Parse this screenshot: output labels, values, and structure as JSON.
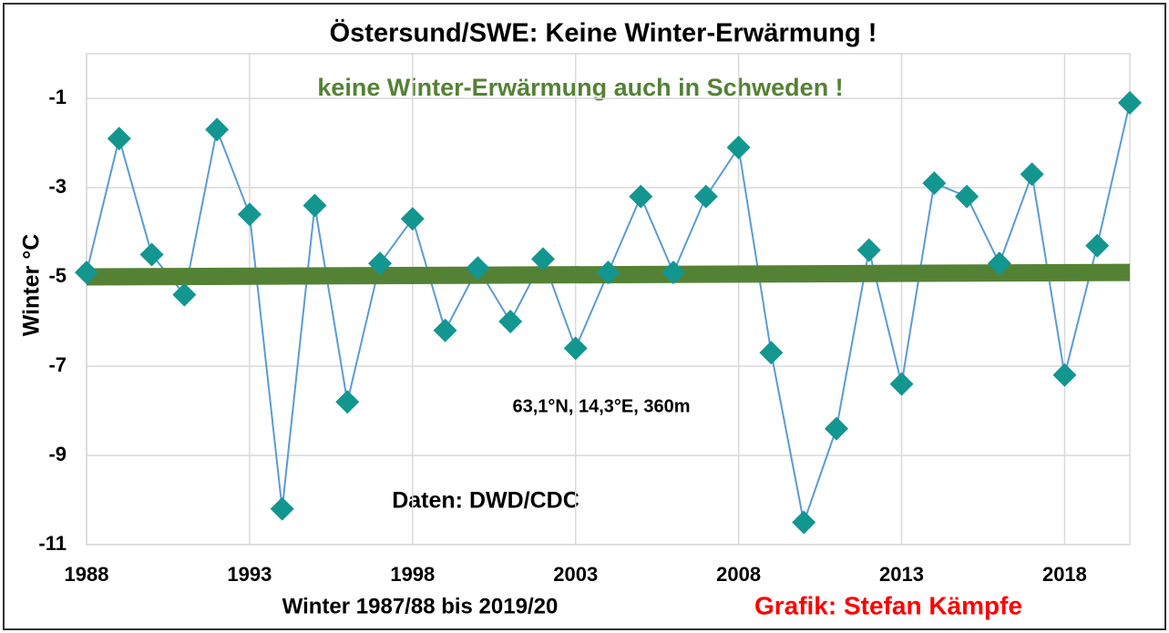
{
  "chart_data": {
    "type": "line",
    "title": "Östersund/SWE:  Keine Winter-Erwärmung  !",
    "subtitle": "keine Winter-Erwärmung auch in Schweden !",
    "x_label": "Winter 1987/88 bis 2019/20",
    "y_label": "Winter °C",
    "annotations": {
      "location": "63,1°N, 14,3°E, 360m",
      "source": "Daten: DWD/CDC",
      "credit": "Grafik: Stefan Kämpfe"
    },
    "x": [
      1988,
      1989,
      1990,
      1991,
      1992,
      1993,
      1994,
      1995,
      1996,
      1997,
      1998,
      1999,
      2000,
      2001,
      2002,
      2003,
      2004,
      2005,
      2006,
      2007,
      2008,
      2009,
      2010,
      2011,
      2012,
      2013,
      2014,
      2015,
      2016,
      2017,
      2018,
      2019,
      2020
    ],
    "series": [
      {
        "name": "Winter",
        "color": "#5b9bd5",
        "marker_color": "#139690",
        "values": [
          -4.9,
          -1.9,
          -4.5,
          -5.4,
          -1.7,
          -3.6,
          -10.2,
          -3.4,
          -7.8,
          -4.7,
          -3.7,
          -6.2,
          -4.8,
          -6.0,
          -4.6,
          -6.6,
          -4.9,
          -3.2,
          -4.9,
          -3.2,
          -2.1,
          -6.7,
          -10.5,
          -8.4,
          -4.4,
          -7.4,
          -2.9,
          -3.2,
          -4.7,
          -2.7,
          -7.2,
          -4.3,
          -1.1
        ]
      }
    ],
    "trend": {
      "color": "#548235",
      "x": [
        1988,
        2020
      ],
      "values": [
        -5.0,
        -4.9
      ]
    },
    "xlim": [
      1988,
      2020
    ],
    "xticks": [
      1988,
      1993,
      1998,
      2003,
      2008,
      2013,
      2018
    ],
    "ylim": [
      -11,
      0
    ],
    "yticks": [
      -1,
      -3,
      -5,
      -7,
      -9,
      -11
    ],
    "grid": true
  }
}
